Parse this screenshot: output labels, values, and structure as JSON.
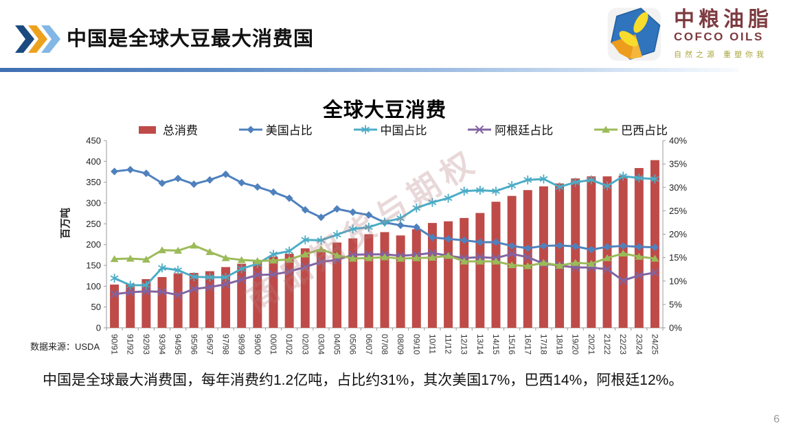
{
  "header": {
    "title": "中国是全球大豆最大消费国",
    "logo": {
      "name_cn": "中粮油脂",
      "name_en": "COFCO OILS",
      "tagline": "自然之源  重塑你我"
    }
  },
  "chart_data": {
    "type": "bar",
    "title": "全球大豆消费",
    "ylabel_left": "百万吨",
    "legend_position": "top",
    "grid": false,
    "left_axis": {
      "min": 0,
      "max": 450,
      "step": 50,
      "suffix": ""
    },
    "right_axis": {
      "min": 0,
      "max": 40,
      "step": 5,
      "suffix": "%"
    },
    "categories": [
      "90/91",
      "91/92",
      "92/93",
      "93/94",
      "94/95",
      "95/96",
      "96/97",
      "97/98",
      "98/99",
      "99/00",
      "00/01",
      "01/02",
      "02/03",
      "03/04",
      "04/05",
      "05/06",
      "06/07",
      "07/08",
      "08/09",
      "09/10",
      "10/11",
      "11/12",
      "12/13",
      "13/14",
      "14/15",
      "15/16",
      "16/17",
      "17/18",
      "18/19",
      "19/20",
      "20/21",
      "21/22",
      "22/23",
      "23/24",
      "24/25"
    ],
    "series": [
      {
        "name": "总消费",
        "kind": "bar",
        "axis": "left",
        "color": "#BE4B48",
        "unit": "百万吨",
        "values": [
          104,
          106,
          117,
          122,
          131,
          132,
          136,
          146,
          154,
          160,
          171,
          178,
          191,
          189,
          205,
          215,
          225,
          230,
          222,
          237,
          252,
          256,
          264,
          276,
          303,
          317,
          331,
          340,
          347,
          359,
          364,
          364,
          366,
          384,
          403
        ]
      },
      {
        "name": "美国占比",
        "kind": "line",
        "marker": "diamond",
        "axis": "right",
        "color": "#4F81BD",
        "unit": "%",
        "values": [
          33.4,
          33.8,
          33.0,
          30.9,
          31.9,
          30.7,
          31.6,
          32.8,
          31.0,
          30.1,
          29.0,
          27.7,
          25.2,
          23.6,
          25.4,
          24.7,
          24.1,
          22.5,
          21.9,
          21.5,
          19.3,
          19.0,
          18.7,
          18.3,
          18.3,
          17.5,
          17.0,
          17.5,
          17.6,
          17.4,
          16.7,
          17.3,
          17.5,
          17.3,
          17.2
        ]
      },
      {
        "name": "中国占比",
        "kind": "line",
        "marker": "asterisk",
        "axis": "right",
        "color": "#4BACC6",
        "unit": "%",
        "values": [
          10.6,
          9.1,
          9.1,
          12.8,
          12.3,
          10.9,
          10.8,
          10.8,
          12.6,
          13.7,
          15.7,
          16.4,
          18.8,
          18.7,
          19.9,
          21.1,
          21.5,
          22.6,
          23.4,
          25.6,
          26.8,
          27.7,
          29.2,
          29.4,
          29.2,
          30.4,
          31.6,
          31.8,
          30.1,
          31.1,
          31.6,
          30.3,
          32.4,
          32.0,
          31.8
        ]
      },
      {
        "name": "阿根廷占比",
        "kind": "line",
        "marker": "x",
        "axis": "right",
        "color": "#8064A2",
        "unit": "%",
        "values": [
          7.2,
          7.6,
          7.8,
          7.7,
          7.0,
          8.3,
          8.7,
          9.3,
          10.3,
          11.3,
          11.4,
          12.0,
          13.0,
          14.1,
          14.5,
          15.6,
          15.7,
          15.7,
          15.4,
          15.6,
          16.0,
          15.4,
          14.9,
          15.1,
          14.9,
          15.8,
          15.1,
          13.7,
          13.3,
          12.9,
          12.9,
          12.5,
          10.1,
          11.2,
          11.8
        ]
      },
      {
        "name": "巴西占比",
        "kind": "line",
        "marker": "triangle",
        "axis": "right",
        "color": "#9BBB59",
        "unit": "%",
        "values": [
          14.7,
          14.8,
          14.6,
          16.6,
          16.5,
          17.6,
          16.2,
          14.9,
          14.5,
          14.3,
          14.4,
          14.6,
          15.7,
          16.8,
          15.5,
          14.8,
          14.9,
          15.1,
          14.8,
          14.9,
          15.0,
          15.4,
          14.2,
          14.2,
          14.2,
          13.4,
          13.2,
          13.9,
          13.3,
          13.9,
          13.7,
          14.9,
          15.9,
          15.2,
          14.8
        ]
      }
    ]
  },
  "watermark": "商品期货与期权",
  "source": "数据来源：USDA",
  "summary": "中国是全球最大消费国，每年消费约1.2亿吨，占比约31%，其次美国17%，巴西14%，阿根廷12%。",
  "page_number": "6"
}
